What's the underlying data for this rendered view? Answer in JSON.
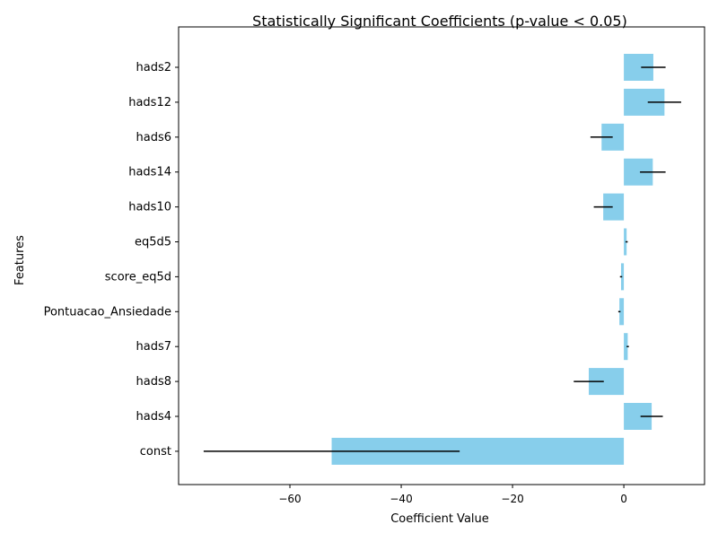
{
  "chart_data": {
    "type": "bar",
    "orientation": "horizontal",
    "title": "Statistically Significant Coefficients (p-value < 0.05)",
    "xlabel": "Coefficient Value",
    "ylabel": "Features",
    "xlim": [
      -80,
      14.5
    ],
    "x_ticks": [
      -60,
      -40,
      -20,
      0
    ],
    "x_tick_labels": [
      "−60",
      "−40",
      "−20",
      "0"
    ],
    "categories": [
      "hads2",
      "hads12",
      "hads6",
      "hads14",
      "hads10",
      "eq5d5",
      "score_eq5d",
      "Pontuacao_Ansiedade",
      "hads7",
      "hads8",
      "hads4",
      "const"
    ],
    "values": [
      5.3,
      7.3,
      -4.0,
      5.2,
      -3.7,
      0.5,
      -0.5,
      -0.8,
      0.7,
      -6.3,
      5.0,
      -52.5
    ],
    "errors": [
      2.2,
      3.0,
      2.0,
      2.3,
      1.7,
      0.2,
      0.2,
      0.2,
      0.2,
      2.7,
      2.0,
      23.0
    ],
    "bar_color": "#87ceeb",
    "error_color": "#000000",
    "grid": false,
    "legend": false
  }
}
